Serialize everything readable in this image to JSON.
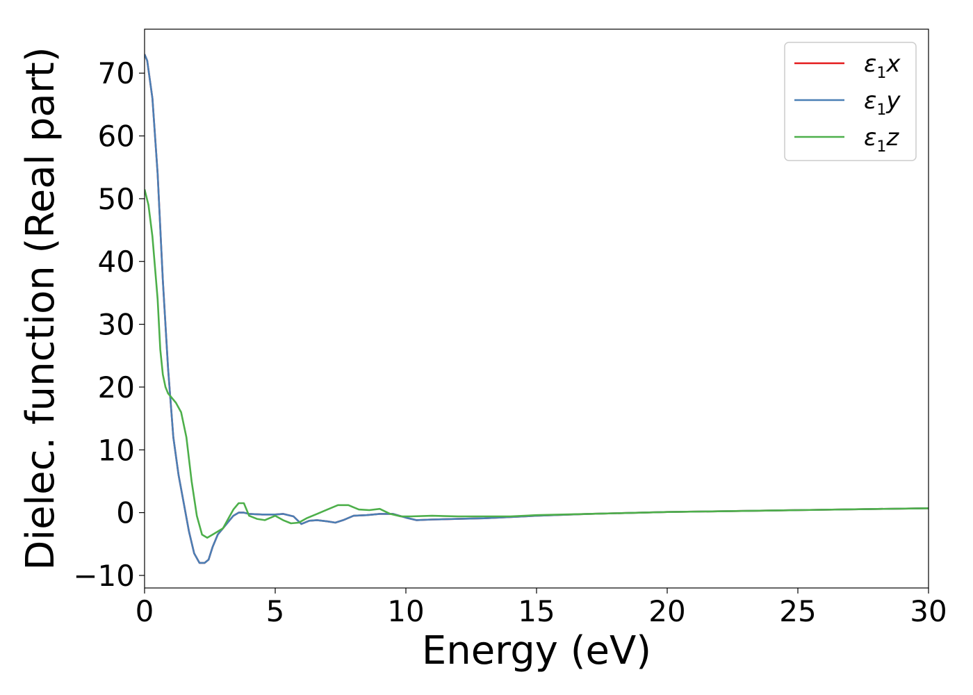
{
  "chart_data": {
    "type": "line",
    "title": "",
    "xlabel": "Energy (eV)",
    "ylabel": "Dielec. function (Real part)",
    "xlim": [
      0,
      30
    ],
    "ylim": [
      -12,
      77
    ],
    "xticks": [
      0,
      5,
      10,
      15,
      20,
      25,
      30
    ],
    "xtick_labels": [
      "0",
      "5",
      "10",
      "15",
      "20",
      "25",
      "30"
    ],
    "yticks": [
      -10,
      0,
      10,
      20,
      30,
      40,
      50,
      60,
      70
    ],
    "ytick_labels": [
      "−10",
      "0",
      "10",
      "20",
      "30",
      "40",
      "50",
      "60",
      "70"
    ],
    "grid": false,
    "legend_position": "top-right",
    "series": [
      {
        "name": "ε",
        "subscript": "1",
        "suffix": "x",
        "color": "#e41a1c",
        "x": [
          0,
          0.1,
          0.3,
          0.5,
          0.7,
          0.9,
          1.1,
          1.3,
          1.5,
          1.7,
          1.9,
          2.1,
          2.3,
          2.45,
          2.6,
          2.8,
          3.0,
          3.2,
          3.4,
          3.6,
          3.8,
          4.0,
          4.5,
          5.0,
          5.3,
          5.7,
          6.0,
          6.3,
          6.6,
          7.0,
          7.3,
          7.6,
          8.0,
          8.5,
          9.0,
          9.5,
          10.0,
          10.4,
          11.0,
          12.0,
          13.0,
          14.0,
          15.0,
          17.0,
          20.0,
          25.0,
          30.0
        ],
        "y": [
          73,
          72,
          66,
          54,
          37,
          23,
          12,
          6,
          1.5,
          -3,
          -6.5,
          -8,
          -8,
          -7.5,
          -5.5,
          -3.5,
          -2.5,
          -1.5,
          -0.5,
          0,
          0,
          -0.2,
          -0.3,
          -0.3,
          -0.2,
          -0.6,
          -1.8,
          -1.3,
          -1.2,
          -1.4,
          -1.6,
          -1.2,
          -0.5,
          -0.4,
          -0.2,
          -0.2,
          -0.8,
          -1.2,
          -1.1,
          -1.0,
          -0.9,
          -0.7,
          -0.5,
          -0.2,
          0.1,
          0.4,
          0.7
        ]
      },
      {
        "name": "ε",
        "subscript": "1",
        "suffix": "y",
        "color": "#4a7fb5",
        "x": [
          0,
          0.1,
          0.3,
          0.5,
          0.7,
          0.9,
          1.1,
          1.3,
          1.5,
          1.7,
          1.9,
          2.1,
          2.3,
          2.45,
          2.6,
          2.8,
          3.0,
          3.2,
          3.4,
          3.6,
          3.8,
          4.0,
          4.5,
          5.0,
          5.3,
          5.7,
          6.0,
          6.3,
          6.6,
          7.0,
          7.3,
          7.6,
          8.0,
          8.5,
          9.0,
          9.5,
          10.0,
          10.4,
          11.0,
          12.0,
          13.0,
          14.0,
          15.0,
          17.0,
          20.0,
          25.0,
          30.0
        ],
        "y": [
          73,
          72,
          66,
          54,
          37,
          23,
          12,
          6,
          1.5,
          -3,
          -6.5,
          -8,
          -8,
          -7.5,
          -5.5,
          -3.5,
          -2.5,
          -1.5,
          -0.5,
          0,
          0,
          -0.2,
          -0.3,
          -0.3,
          -0.2,
          -0.6,
          -1.8,
          -1.3,
          -1.2,
          -1.4,
          -1.6,
          -1.2,
          -0.5,
          -0.4,
          -0.2,
          -0.2,
          -0.8,
          -1.2,
          -1.1,
          -1.0,
          -0.9,
          -0.7,
          -0.5,
          -0.2,
          0.1,
          0.4,
          0.7
        ]
      },
      {
        "name": "ε",
        "subscript": "1",
        "suffix": "z",
        "color": "#4daf4a",
        "x": [
          0,
          0.15,
          0.3,
          0.5,
          0.6,
          0.7,
          0.8,
          0.9,
          1.0,
          1.2,
          1.4,
          1.6,
          1.8,
          2.0,
          2.2,
          2.4,
          2.6,
          2.8,
          3.0,
          3.2,
          3.4,
          3.6,
          3.8,
          4.0,
          4.3,
          4.6,
          5.0,
          5.3,
          5.6,
          5.9,
          6.2,
          6.6,
          7.0,
          7.4,
          7.8,
          8.2,
          8.6,
          9.0,
          9.4,
          9.8,
          10.2,
          11.0,
          12.0,
          13.0,
          14.0,
          15.0,
          17.0,
          20.0,
          25.0,
          30.0
        ],
        "y": [
          51.5,
          49,
          44,
          34,
          26,
          22,
          20,
          19,
          18.5,
          17.5,
          16,
          12,
          5,
          -0.5,
          -3.5,
          -4,
          -3.5,
          -3,
          -2.5,
          -1,
          0.5,
          1.5,
          1.5,
          -0.5,
          -1,
          -1.2,
          -0.5,
          -1.2,
          -1.7,
          -1.6,
          -0.9,
          -0.2,
          0.5,
          1.2,
          1.2,
          0.5,
          0.4,
          0.6,
          -0.2,
          -0.6,
          -0.6,
          -0.5,
          -0.6,
          -0.6,
          -0.6,
          -0.4,
          -0.2,
          0.1,
          0.4,
          0.7
        ]
      }
    ]
  }
}
